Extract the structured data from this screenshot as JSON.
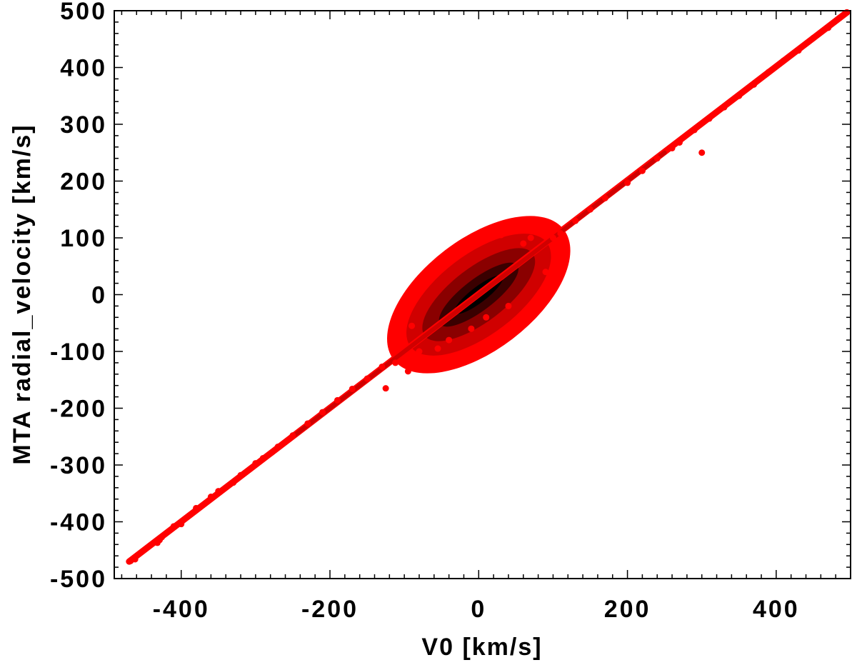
{
  "chart_data": {
    "type": "scatter",
    "title": "",
    "xlabel": "V0 [km/s]",
    "ylabel": "MTA radial_velocity [km/s]",
    "xlim": [
      -490,
      500
    ],
    "ylim": [
      -500,
      500
    ],
    "x_ticks": [
      -400,
      -200,
      0,
      200,
      400
    ],
    "y_ticks": [
      -500,
      -400,
      -300,
      -200,
      -100,
      0,
      100,
      200,
      300,
      400,
      500
    ],
    "x_tick_labels": [
      "-400",
      "-200",
      "0",
      "200",
      "400"
    ],
    "y_tick_labels": [
      "-500",
      "-400",
      "-300",
      "-200",
      "-100",
      "0",
      "100",
      "200",
      "300",
      "400",
      "500"
    ],
    "grid": false,
    "legend": "none",
    "density_colormap": [
      "#ff0000",
      "#d00000",
      "#8a0000",
      "#3a0000",
      "#000000"
    ],
    "series": [
      {
        "points": [
          [
            -468,
            -469
          ],
          [
            -462,
            -466
          ],
          [
            -432,
            -437
          ],
          [
            -429,
            -432
          ],
          [
            -426,
            -427
          ],
          [
            -410,
            -408
          ],
          [
            -400,
            -404
          ],
          [
            -380,
            -376
          ],
          [
            -360,
            -356
          ],
          [
            -350,
            -346
          ],
          [
            -330,
            -331
          ],
          [
            -320,
            -318
          ],
          [
            -300,
            -297
          ],
          [
            -290,
            -288
          ],
          [
            -270,
            -268
          ],
          [
            -250,
            -248
          ],
          [
            -230,
            -227
          ],
          [
            -210,
            -207
          ],
          [
            -190,
            -186
          ],
          [
            -170,
            -166
          ],
          [
            -150,
            -148
          ],
          [
            -130,
            -127
          ],
          [
            -125,
            -165
          ],
          [
            -112,
            -120
          ],
          [
            -104,
            -60
          ],
          [
            -95,
            -135
          ],
          [
            -90,
            -55
          ],
          [
            -85,
            -123
          ],
          [
            -80,
            -100
          ],
          [
            -75,
            20
          ],
          [
            -70,
            40
          ],
          [
            -60,
            50
          ],
          [
            -55,
            -95
          ],
          [
            -40,
            -80
          ],
          [
            -30,
            70
          ],
          [
            -20,
            75
          ],
          [
            -10,
            -60
          ],
          [
            10,
            -40
          ],
          [
            30,
            105
          ],
          [
            40,
            -20
          ],
          [
            60,
            90
          ],
          [
            70,
            100
          ],
          [
            80,
            -20
          ],
          [
            90,
            40
          ],
          [
            100,
            100
          ],
          [
            110,
            108
          ],
          [
            130,
            130
          ],
          [
            150,
            150
          ],
          [
            170,
            170
          ],
          [
            200,
            197
          ],
          [
            220,
            218
          ],
          [
            240,
            240
          ],
          [
            260,
            258
          ],
          [
            270,
            268
          ],
          [
            290,
            290
          ],
          [
            300,
            250
          ],
          [
            310,
            310
          ],
          [
            330,
            330
          ],
          [
            350,
            350
          ],
          [
            370,
            370
          ],
          [
            390,
            392
          ],
          [
            410,
            412
          ],
          [
            430,
            430
          ],
          [
            450,
            452
          ],
          [
            470,
            470
          ],
          [
            485,
            487
          ],
          [
            495,
            497
          ]
        ]
      }
    ]
  }
}
